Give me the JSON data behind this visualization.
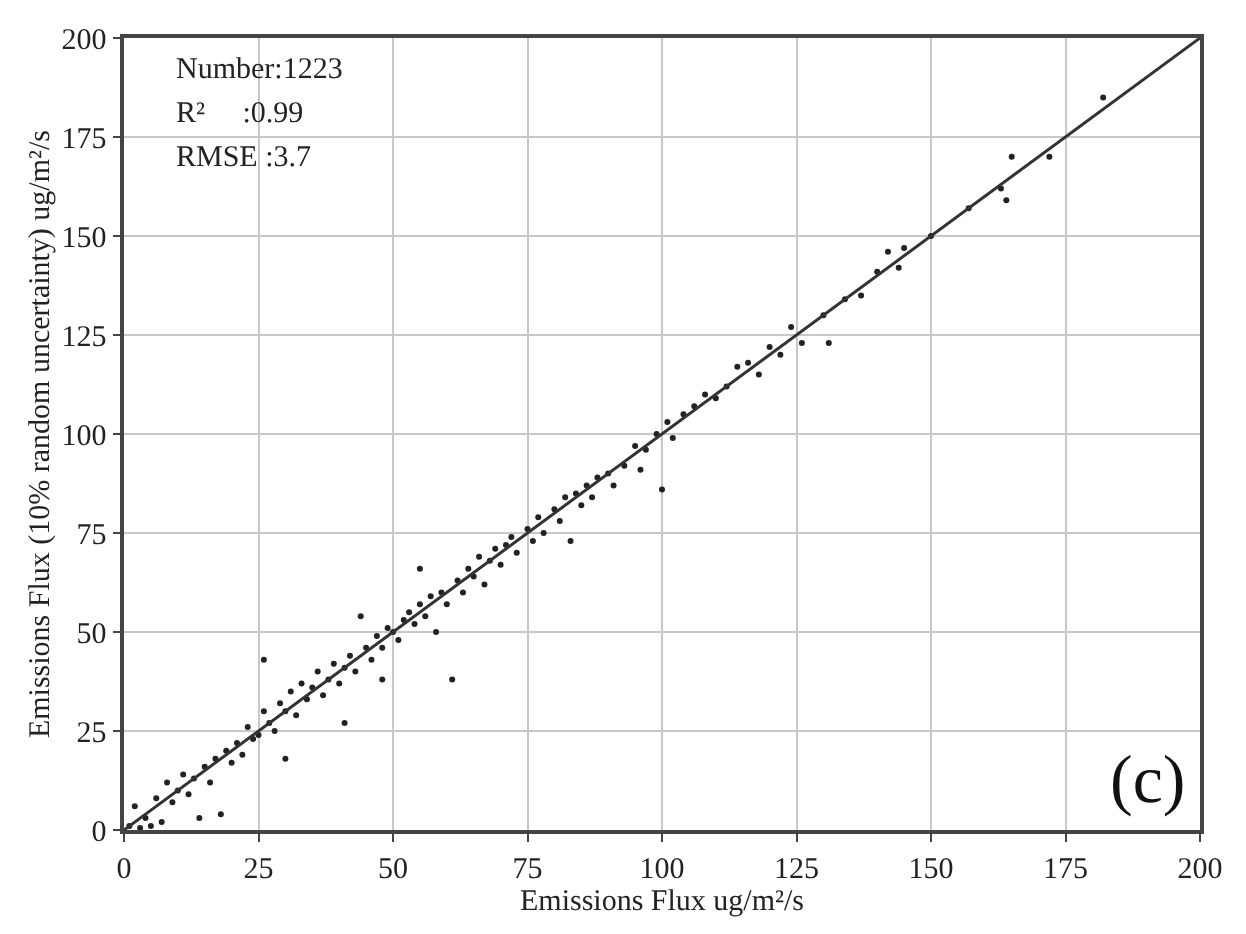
{
  "chart_data": {
    "type": "scatter",
    "xlabel": "Emissions Flux ug/m²/s",
    "ylabel": "Emissions Flux (10% random uncertainty) ug/m²/s",
    "annotations": [
      "Number:1223",
      "R²     :0.99",
      "RMSE :3.7",
      "(c)"
    ],
    "xlim": [
      0,
      200
    ],
    "ylim": [
      0,
      200
    ],
    "xticks": [
      0,
      25,
      50,
      75,
      100,
      125,
      150,
      175,
      200
    ],
    "yticks": [
      0,
      25,
      50,
      75,
      100,
      125,
      150,
      175,
      200
    ],
    "grid": true,
    "series": [
      {
        "color": "#222222",
        "marker": "circle",
        "x": [
          1,
          2,
          3,
          4,
          5,
          6,
          7,
          8,
          9,
          10,
          11,
          12,
          13,
          14,
          15,
          16,
          17,
          18,
          19,
          20,
          21,
          22,
          23,
          24,
          25,
          26,
          26,
          27,
          28,
          29,
          30,
          30,
          31,
          32,
          33,
          34,
          35,
          36,
          37,
          38,
          39,
          40,
          41,
          41,
          42,
          43,
          44,
          45,
          46,
          47,
          48,
          48,
          49,
          50,
          51,
          52,
          53,
          54,
          55,
          55,
          56,
          57,
          58,
          59,
          60,
          61,
          62,
          63,
          64,
          65,
          66,
          67,
          68,
          69,
          70,
          71,
          72,
          73,
          75,
          76,
          77,
          78,
          80,
          81,
          82,
          83,
          84,
          85,
          86,
          87,
          88,
          90,
          91,
          93,
          95,
          96,
          97,
          99,
          100,
          101,
          102,
          104,
          106,
          108,
          110,
          112,
          114,
          116,
          118,
          120,
          122,
          124,
          126,
          130,
          131,
          134,
          137,
          140,
          142,
          144,
          145,
          150,
          157,
          163,
          164,
          165,
          172,
          182
        ],
        "values": [
          1,
          6,
          0.5,
          3,
          1,
          8,
          2,
          12,
          7,
          10,
          14,
          9,
          13,
          3,
          16,
          12,
          18,
          4,
          20,
          17,
          22,
          19,
          26,
          23,
          24,
          43,
          30,
          27,
          25,
          32,
          18,
          30,
          35,
          29,
          37,
          33,
          36,
          40,
          34,
          38,
          42,
          37,
          27,
          41,
          44,
          40,
          54,
          46,
          43,
          49,
          38,
          46,
          51,
          50,
          48,
          53,
          55,
          52,
          57,
          66,
          54,
          59,
          50,
          60,
          57,
          38,
          63,
          60,
          66,
          64,
          69,
          62,
          68,
          71,
          67,
          72,
          74,
          70,
          76,
          73,
          79,
          75,
          81,
          78,
          84,
          73,
          85,
          82,
          87,
          84,
          89,
          90,
          87,
          92,
          97,
          91,
          96,
          100,
          86,
          103,
          99,
          105,
          107,
          110,
          109,
          112,
          117,
          118,
          115,
          122,
          120,
          127,
          123,
          130,
          123,
          134,
          135,
          141,
          146,
          142,
          147,
          150,
          157,
          162,
          159,
          170,
          170,
          185
        ]
      },
      {
        "type": "line",
        "color": "#333333",
        "line_style": "solid",
        "marker": "none",
        "x": [
          0,
          200
        ],
        "values": [
          0,
          200
        ]
      }
    ]
  }
}
